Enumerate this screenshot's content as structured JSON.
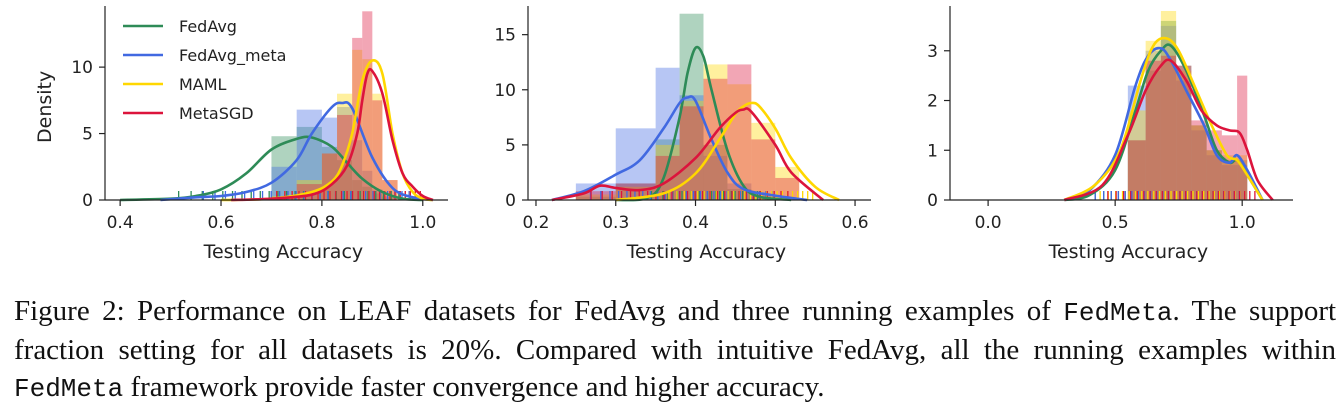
{
  "series_colors": {
    "FedAvg": "#2e8b57",
    "FedAvg_meta": "#4169e1",
    "MAML": "#ffd700",
    "MetaSGD": "#dc143c"
  },
  "legend": [
    "FedAvg",
    "FedAvg_meta",
    "MAML",
    "MetaSGD"
  ],
  "chart_data": [
    {
      "type": "area",
      "xlabel": "Testing Accuracy",
      "ylabel": "Density",
      "xlim": [
        0.37,
        1.05
      ],
      "ylim": [
        0,
        14.6
      ],
      "xticks": [
        0.4,
        0.6,
        0.8,
        1.0
      ],
      "xticklabels": [
        "0.4",
        "0.6",
        "0.8",
        "1.0"
      ],
      "yticks": [
        0,
        5,
        10
      ],
      "yticklabels": [
        "0",
        "5",
        "10"
      ],
      "legend_position": "top-left",
      "series": [
        {
          "name": "FedAvg",
          "x": [
            0.4,
            0.5,
            0.55,
            0.6,
            0.65,
            0.7,
            0.75,
            0.78,
            0.82,
            0.85,
            0.88,
            0.92,
            0.96,
            1.0
          ],
          "y": [
            0,
            0.1,
            0.3,
            0.8,
            2.0,
            3.8,
            4.6,
            4.7,
            4.0,
            2.8,
            1.6,
            0.6,
            0.1,
            0
          ]
        },
        {
          "name": "FedAvg_meta",
          "x": [
            0.48,
            0.55,
            0.6,
            0.65,
            0.7,
            0.75,
            0.78,
            0.82,
            0.84,
            0.86,
            0.9,
            0.94,
            0.98,
            1.02
          ],
          "y": [
            0,
            0.2,
            0.3,
            0.6,
            1.3,
            3.0,
            5.0,
            7.0,
            7.3,
            6.9,
            3.2,
            0.9,
            0.2,
            0
          ]
        },
        {
          "name": "MAML",
          "x": [
            0.6,
            0.7,
            0.78,
            0.82,
            0.84,
            0.86,
            0.88,
            0.9,
            0.92,
            0.94,
            0.96,
            0.98,
            1.0,
            1.02
          ],
          "y": [
            0,
            0.1,
            0.6,
            1.4,
            2.6,
            5.0,
            9.0,
            10.5,
            9.5,
            5.0,
            2.0,
            0.6,
            0.1,
            0
          ]
        },
        {
          "name": "MetaSGD",
          "x": [
            0.62,
            0.7,
            0.78,
            0.82,
            0.85,
            0.87,
            0.88,
            0.89,
            0.9,
            0.92,
            0.94,
            0.96,
            0.98,
            1.0,
            1.02
          ],
          "y": [
            0,
            0.1,
            0.4,
            1.2,
            2.6,
            5.0,
            7.5,
            9.5,
            9.7,
            8.0,
            4.5,
            2.0,
            1.0,
            0.3,
            0
          ]
        }
      ],
      "histogram": {
        "bin_edges": [
          0.7,
          0.75,
          0.8,
          0.83,
          0.86,
          0.88,
          0.9,
          0.92,
          0.95
        ],
        "FedAvg": [
          4.8,
          5.5,
          4.0,
          3.0,
          1.5,
          1.0,
          0.5,
          0.2
        ],
        "FedAvg_meta": [
          2.5,
          6.8,
          6.2,
          7.0,
          4.5,
          2.2,
          0.8,
          0.3
        ],
        "MAML": [
          0.3,
          1.5,
          3.5,
          8.0,
          11.3,
          10.6,
          8.0,
          1.5
        ],
        "MetaSGD": [
          0.2,
          1.2,
          3.5,
          6.4,
          12.2,
          14.2,
          7.5,
          1.5
        ]
      }
    },
    {
      "type": "area",
      "xlabel": "Testing Accuracy",
      "ylabel": "",
      "xlim": [
        0.19,
        0.62
      ],
      "ylim": [
        0,
        17.6
      ],
      "xticks": [
        0.2,
        0.3,
        0.4,
        0.5,
        0.6
      ],
      "xticklabels": [
        "0.2",
        "0.3",
        "0.4",
        "0.5",
        "0.6"
      ],
      "yticks": [
        0,
        5,
        10,
        15
      ],
      "yticklabels": [
        "0",
        "5",
        "10",
        "15"
      ],
      "series": [
        {
          "name": "FedAvg",
          "x": [
            0.3,
            0.34,
            0.36,
            0.38,
            0.39,
            0.4,
            0.41,
            0.42,
            0.44,
            0.46,
            0.48,
            0.52
          ],
          "y": [
            0,
            0.2,
            2.0,
            7.5,
            11.5,
            13.8,
            13.0,
            10.0,
            4.5,
            1.3,
            0.3,
            0
          ]
        },
        {
          "name": "FedAvg_meta",
          "x": [
            0.22,
            0.26,
            0.3,
            0.33,
            0.36,
            0.38,
            0.39,
            0.4,
            0.42,
            0.44,
            0.46,
            0.5,
            0.54
          ],
          "y": [
            0,
            0.8,
            2.3,
            3.6,
            6.5,
            8.8,
            9.3,
            9.0,
            5.5,
            2.5,
            1.0,
            0.4,
            0
          ]
        },
        {
          "name": "MAML",
          "x": [
            0.3,
            0.36,
            0.4,
            0.43,
            0.45,
            0.46,
            0.47,
            0.48,
            0.5,
            0.52,
            0.55,
            0.58
          ],
          "y": [
            0,
            0.6,
            2.4,
            5.5,
            7.8,
            8.5,
            8.8,
            8.5,
            6.5,
            3.8,
            1.2,
            0
          ]
        },
        {
          "name": "MetaSGD",
          "x": [
            0.22,
            0.26,
            0.28,
            0.3,
            0.33,
            0.36,
            0.4,
            0.43,
            0.45,
            0.46,
            0.47,
            0.5,
            0.52,
            0.56
          ],
          "y": [
            0,
            0.6,
            1.3,
            1.1,
            0.9,
            1.5,
            3.8,
            6.5,
            7.9,
            8.2,
            8.0,
            5.0,
            2.5,
            0
          ]
        }
      ],
      "histogram": {
        "bin_edges": [
          0.25,
          0.3,
          0.35,
          0.38,
          0.41,
          0.44,
          0.47,
          0.5,
          0.53
        ],
        "FedAvg": [
          0.3,
          1.5,
          5.5,
          16.9,
          5.0,
          1.0,
          0.3,
          0
        ],
        "FedAvg_meta": [
          1.5,
          6.5,
          12.0,
          9.5,
          4.0,
          1.5,
          0.5,
          0
        ],
        "MAML": [
          0.5,
          1.2,
          5.0,
          9.0,
          12.3,
          10.5,
          7.0,
          3.0
        ],
        "MetaSGD": [
          0.8,
          1.5,
          4.0,
          8.5,
          11.0,
          12.3,
          5.5,
          2.0
        ]
      }
    },
    {
      "type": "area",
      "xlabel": "Testing Accuracy",
      "ylabel": "",
      "xlim": [
        -0.15,
        1.2
      ],
      "ylim": [
        0,
        3.9
      ],
      "xticks": [
        0.0,
        0.5,
        1.0
      ],
      "xticklabels": [
        "0.0",
        "0.5",
        "1.0"
      ],
      "yticks": [
        0,
        1,
        2,
        3
      ],
      "yticklabels": [
        "0",
        "1",
        "2",
        "3"
      ],
      "series": [
        {
          "name": "FedAvg",
          "x": [
            0.3,
            0.4,
            0.5,
            0.58,
            0.63,
            0.68,
            0.72,
            0.78,
            0.85,
            0.9,
            0.95,
            0.98,
            1.02,
            1.08
          ],
          "y": [
            0,
            0.1,
            0.6,
            1.8,
            2.6,
            3.0,
            3.1,
            2.6,
            1.7,
            1.0,
            0.75,
            0.8,
            0.5,
            0
          ]
        },
        {
          "name": "FedAvg_meta",
          "x": [
            0.3,
            0.4,
            0.5,
            0.58,
            0.63,
            0.68,
            0.72,
            0.78,
            0.85,
            0.9,
            0.95,
            0.98,
            1.02,
            1.08
          ],
          "y": [
            0,
            0.2,
            0.9,
            2.3,
            2.9,
            3.05,
            2.8,
            2.2,
            1.5,
            0.9,
            0.75,
            0.9,
            0.6,
            0
          ]
        },
        {
          "name": "MAML",
          "x": [
            0.3,
            0.42,
            0.52,
            0.6,
            0.65,
            0.7,
            0.75,
            0.82,
            0.88,
            0.94,
            0.98,
            1.02,
            1.08
          ],
          "y": [
            0,
            0.3,
            1.0,
            2.4,
            3.1,
            3.25,
            3.0,
            2.2,
            1.5,
            0.9,
            0.8,
            0.5,
            0
          ]
        },
        {
          "name": "MetaSGD",
          "x": [
            0.3,
            0.45,
            0.55,
            0.62,
            0.68,
            0.72,
            0.78,
            0.84,
            0.9,
            0.95,
            0.99,
            1.02,
            1.06,
            1.12
          ],
          "y": [
            0,
            0.3,
            1.3,
            2.2,
            2.7,
            2.8,
            2.4,
            1.8,
            1.5,
            1.4,
            1.35,
            1.0,
            0.4,
            0
          ]
        }
      ],
      "histogram": {
        "bin_edges": [
          0.55,
          0.62,
          0.68,
          0.74,
          0.8,
          0.86,
          0.92,
          0.98,
          1.02
        ],
        "FedAvg": [
          1.2,
          2.6,
          3.6,
          2.7,
          1.5,
          1.0,
          0.8,
          0.8
        ],
        "FedAvg_meta": [
          2.3,
          3.0,
          3.5,
          2.4,
          1.4,
          0.9,
          0.7,
          0.7
        ],
        "MAML": [
          1.8,
          3.2,
          3.8,
          2.6,
          1.5,
          1.0,
          0.9,
          0.9
        ],
        "MetaSGD": [
          1.2,
          2.8,
          2.9,
          2.7,
          1.6,
          1.4,
          1.3,
          2.5
        ]
      }
    }
  ],
  "caption": {
    "l1a": "Figure 2: Performance on LEAF datasets for FedAvg and three running examples of ",
    "l1b": "FedMeta",
    "l1c": ". The",
    "l2": "support fraction setting for all datasets is 20%. Compared with intuitive FedAvg, all the running",
    "l3a": "examples within ",
    "l3b": "FedMeta",
    "l3c": " framework provide faster convergence and higher accuracy."
  }
}
